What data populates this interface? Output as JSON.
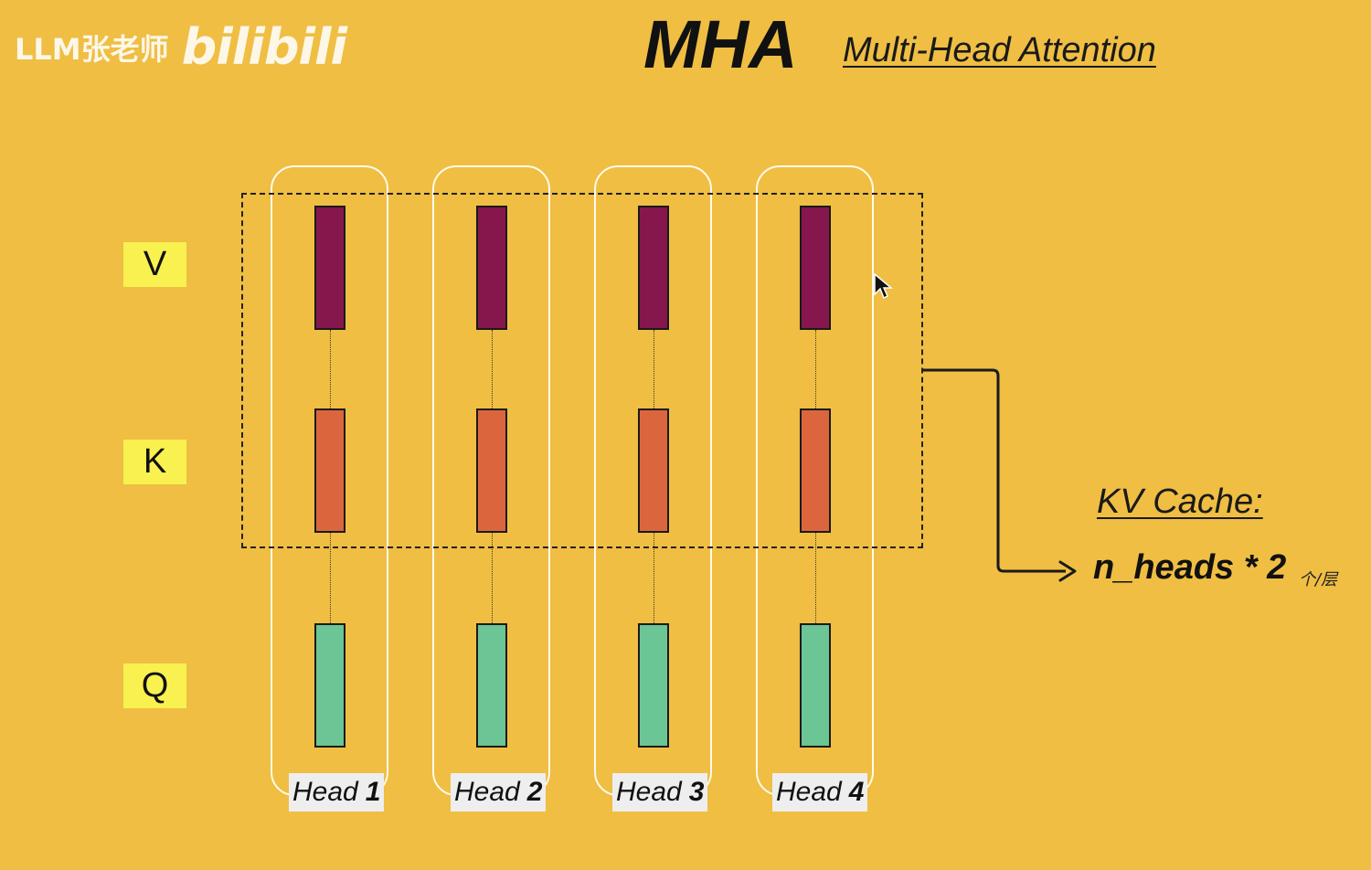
{
  "watermark": {
    "text": "LLM张老师",
    "logo": "bilibili"
  },
  "title": "MHA",
  "subtitle": "Multi-Head Attention",
  "rows": {
    "v": "V",
    "k": "K",
    "q": "Q"
  },
  "heads": [
    {
      "prefix": "Head",
      "num": "1"
    },
    {
      "prefix": "Head",
      "num": "2"
    },
    {
      "prefix": "Head",
      "num": "3"
    },
    {
      "prefix": "Head",
      "num": "4"
    }
  ],
  "kv_cache": {
    "title": "KV Cache:",
    "formula": "n_heads * 2",
    "unit": "个/层"
  },
  "colors": {
    "background": "#EFBE43",
    "value": "#86174C",
    "key": "#DB663D",
    "query": "#6BC594",
    "row_label_bg": "#F9F150"
  }
}
